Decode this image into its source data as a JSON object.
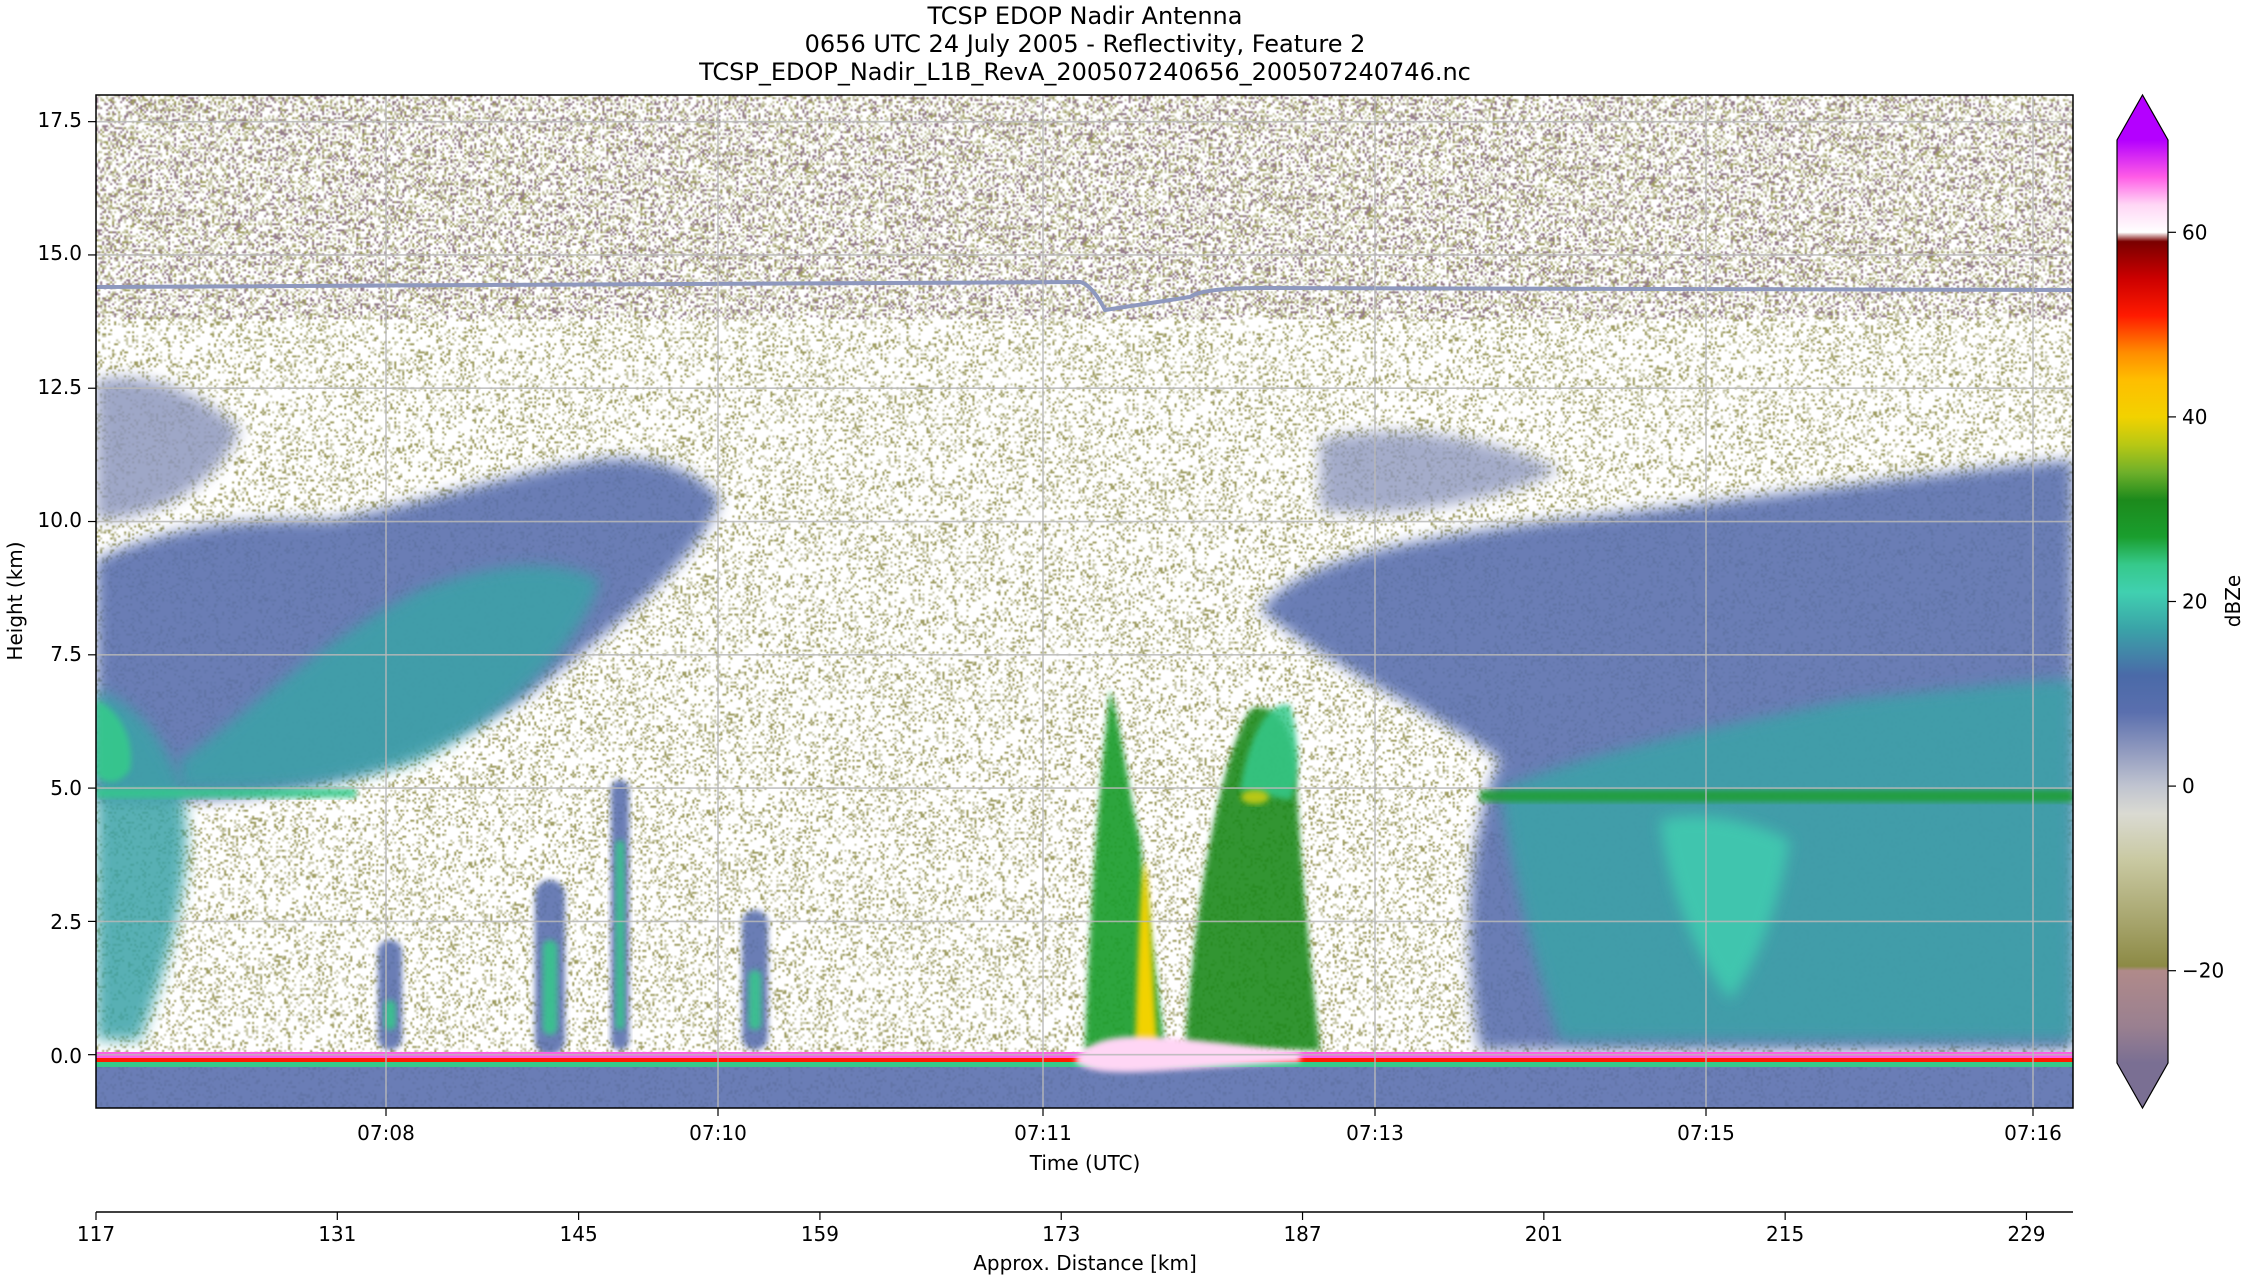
{
  "figure": {
    "title_lines": [
      "TCSP EDOP Nadir Antenna",
      "0656 UTC 24 July 2005 - Reflectivity, Feature 2",
      "TCSP_EDOP_Nadir_L1B_RevA_200507240656_200507240746.nc"
    ]
  },
  "chart_data": {
    "type": "heatmap",
    "title": "TCSP EDOP Nadir Antenna",
    "xlabel": "Time (UTC)",
    "ylabel": "Height (km)",
    "x_ticks": [
      "07:08",
      "07:10",
      "07:11",
      "07:13",
      "07:15",
      "07:16"
    ],
    "y_ticks": [
      "0.0",
      "2.5",
      "5.0",
      "7.5",
      "10.0",
      "12.5",
      "15.0",
      "17.5"
    ],
    "y_tick_values": [
      0.0,
      2.5,
      5.0,
      7.5,
      10.0,
      12.5,
      15.0,
      17.5
    ],
    "ylim": [
      -1.0,
      18.0
    ],
    "grid": true,
    "secondary_axis": {
      "label": "Approx. Distance [km]",
      "ticks": [
        "117",
        "131",
        "145",
        "159",
        "173",
        "187",
        "201",
        "215",
        "229"
      ],
      "tick_values": [
        117,
        131,
        145,
        159,
        173,
        187,
        201,
        215,
        229
      ],
      "range": [
        117,
        231.7
      ]
    },
    "colorbar": {
      "label": "dBZe",
      "ticks": [
        "−20",
        "0",
        "20",
        "40",
        "60"
      ],
      "tick_values": [
        -20,
        0,
        20,
        40,
        60
      ],
      "range": [
        -30,
        70
      ],
      "extend": "both",
      "stops": [
        {
          "v": -30,
          "c": "#7a6f93"
        },
        {
          "v": -26,
          "c": "#9a8090"
        },
        {
          "v": -20,
          "c": "#b08a8a"
        },
        {
          "v": -19.5,
          "c": "#8c8a45"
        },
        {
          "v": -15,
          "c": "#a5a36a"
        },
        {
          "v": -8,
          "c": "#c9c9a2"
        },
        {
          "v": -3,
          "c": "#dadad2"
        },
        {
          "v": 0,
          "c": "#c0c4d0"
        },
        {
          "v": 4,
          "c": "#8e98be"
        },
        {
          "v": 8,
          "c": "#5a6fae"
        },
        {
          "v": 12,
          "c": "#4a6aa8"
        },
        {
          "v": 17,
          "c": "#3aa3a8"
        },
        {
          "v": 21,
          "c": "#40d0b0"
        },
        {
          "v": 24,
          "c": "#36c98b"
        },
        {
          "v": 27,
          "c": "#1a9e2e"
        },
        {
          "v": 31,
          "c": "#1c8a1c"
        },
        {
          "v": 34,
          "c": "#6fb02a"
        },
        {
          "v": 37,
          "c": "#b8c814"
        },
        {
          "v": 40,
          "c": "#f2d200"
        },
        {
          "v": 44,
          "c": "#ffbe00"
        },
        {
          "v": 47,
          "c": "#ff8c00"
        },
        {
          "v": 51,
          "c": "#ff1a00"
        },
        {
          "v": 55,
          "c": "#cc0000"
        },
        {
          "v": 59,
          "c": "#7a0000"
        },
        {
          "v": 60,
          "c": "#ffffff"
        },
        {
          "v": 63,
          "c": "#ffd6f5"
        },
        {
          "v": 66,
          "c": "#ff5ce6"
        },
        {
          "v": 70,
          "c": "#b400ff"
        }
      ]
    },
    "features": {
      "background": "clear air with sparse speckle noise (about -20 to -5 dBZe)",
      "tropopause_line_km": 14.4,
      "melting_layer_km": 4.8,
      "surface_return_km": 0.0,
      "max_reflectivity": "about 40 dBZe near 07:11 below 3.5 km"
    }
  }
}
